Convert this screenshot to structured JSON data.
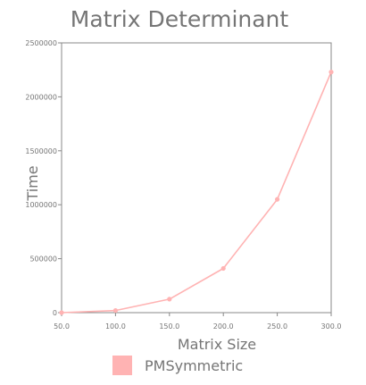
{
  "chart_data": {
    "type": "line",
    "title": "Matrix Determinant",
    "xlabel": "Matrix Size",
    "ylabel": "Time",
    "x": [
      50.0,
      100.0,
      150.0,
      200.0,
      250.0,
      300.0
    ],
    "x_tick_labels": [
      "50.0",
      "100.0",
      "150.0",
      "200.0",
      "250.0",
      "300.0"
    ],
    "y_ticks": [
      0,
      500000,
      1000000,
      1500000,
      2000000,
      2500000
    ],
    "y_tick_labels": [
      "0",
      "500000",
      "1000000",
      "1500000",
      "2000000",
      "2500000"
    ],
    "xlim": [
      50,
      300
    ],
    "ylim": [
      0,
      2500000
    ],
    "grid": false,
    "legend_position": "bottom",
    "series": [
      {
        "name": "PMSymmetric",
        "color": "#ffb3b3",
        "values": [
          0,
          20000,
          125000,
          410000,
          1050000,
          2230000
        ]
      }
    ]
  }
}
